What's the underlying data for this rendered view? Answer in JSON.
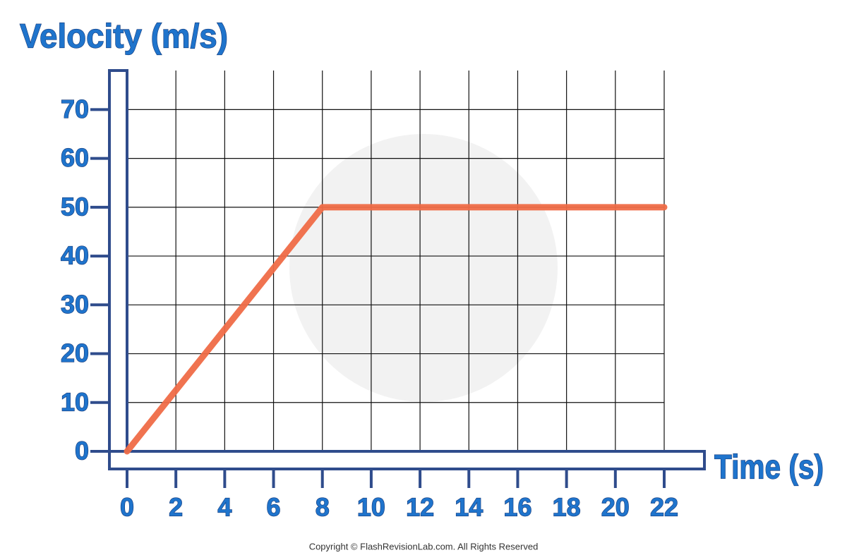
{
  "chart_data": {
    "type": "line",
    "y_label": "Velocity (m/s)",
    "x_label": "Time (s)",
    "source": "Copyright © FlashRevisionLab.com. All Rights Reserved",
    "x": [
      0,
      8,
      22
    ],
    "values": [
      0,
      50,
      50
    ],
    "color": "#ef6c47",
    "xlim": [
      0,
      22
    ],
    "ylim": [
      0,
      78
    ],
    "xticks": [
      0,
      2,
      4,
      6,
      8,
      10,
      12,
      14,
      16,
      18,
      20,
      22
    ],
    "yticks": [
      0,
      10,
      20,
      30,
      40,
      50,
      60,
      70
    ],
    "grid": true
  }
}
